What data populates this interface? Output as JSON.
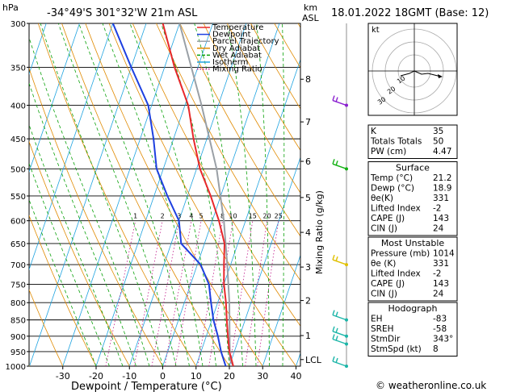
{
  "header": {
    "location": "-34°49'S  301°32'W  21m  ASL",
    "datetime": "18.01.2022  18GMT  (Base: 12)",
    "hpa_label": "hPa",
    "km_label": "km",
    "asl_label": "ASL"
  },
  "footer": {
    "copyright": "© weatheronline.co.uk"
  },
  "chart_data": {
    "type": "line",
    "subtype": "skew-T log-P sounding",
    "xlabel": "Dewpoint / Temperature (°C)",
    "ylabel_right": "Mixing Ratio (g/kg)",
    "x_ticks": [
      -30,
      -20,
      -10,
      0,
      10,
      20,
      30,
      40
    ],
    "pressure_ticks": [
      300,
      350,
      400,
      450,
      500,
      550,
      600,
      650,
      700,
      750,
      800,
      850,
      900,
      950,
      1000
    ],
    "km_ticks": [
      {
        "label": "8",
        "p": 365
      },
      {
        "label": "7",
        "p": 424
      },
      {
        "label": "6",
        "p": 487
      },
      {
        "label": "5",
        "p": 553
      },
      {
        "label": "4",
        "p": 625
      },
      {
        "label": "3",
        "p": 706
      },
      {
        "label": "2",
        "p": 794
      },
      {
        "label": "1",
        "p": 898
      },
      {
        "label": "LCL",
        "p": 977
      }
    ],
    "mixing_ratio_labels": [
      "1",
      "2",
      "3",
      "4",
      "5",
      "8",
      "10",
      "15",
      "20",
      "25"
    ],
    "legend": [
      {
        "name": "Temperature",
        "color": "#e8282b"
      },
      {
        "name": "Dewpoint",
        "color": "#1d3fe0"
      },
      {
        "name": "Parcel Trajectory",
        "color": "#9aa0a6"
      },
      {
        "name": "Dry Adiabat",
        "color": "#e08a00"
      },
      {
        "name": "Wet Adiabat",
        "color": "#0aa10a"
      },
      {
        "name": "Isotherm",
        "color": "#1fa3e0"
      },
      {
        "name": "Mixing Ratio",
        "color": "#c0188a"
      }
    ],
    "temperature": [
      [
        1000,
        21.2
      ],
      [
        950,
        18.5
      ],
      [
        900,
        16.5
      ],
      [
        850,
        14.5
      ],
      [
        800,
        12.5
      ],
      [
        750,
        10
      ],
      [
        700,
        8
      ],
      [
        650,
        6
      ],
      [
        600,
        2
      ],
      [
        550,
        -3
      ],
      [
        500,
        -9
      ],
      [
        450,
        -14
      ],
      [
        400,
        -19
      ],
      [
        350,
        -27
      ],
      [
        300,
        -35
      ]
    ],
    "dewpoint": [
      [
        1000,
        18.9
      ],
      [
        950,
        16
      ],
      [
        900,
        13.5
      ],
      [
        850,
        10.5
      ],
      [
        800,
        8
      ],
      [
        750,
        5.5
      ],
      [
        700,
        1
      ],
      [
        650,
        -7
      ],
      [
        600,
        -10
      ],
      [
        550,
        -16
      ],
      [
        500,
        -22
      ],
      [
        450,
        -26
      ],
      [
        400,
        -31
      ],
      [
        350,
        -40
      ],
      [
        300,
        -50
      ]
    ],
    "parcel": [
      [
        1000,
        21.2
      ],
      [
        977,
        19.5
      ],
      [
        900,
        17
      ],
      [
        800,
        13.5
      ],
      [
        700,
        9
      ],
      [
        600,
        3.5
      ],
      [
        500,
        -4
      ],
      [
        400,
        -15
      ],
      [
        300,
        -30
      ]
    ],
    "wind_barbs": [
      {
        "p": 400,
        "color": "#8a1fd0"
      },
      {
        "p": 500,
        "color": "#12b012"
      },
      {
        "p": 700,
        "color": "#e0c000"
      },
      {
        "p": 850,
        "color": "#1bb5a8"
      },
      {
        "p": 900,
        "color": "#1bb5a8"
      },
      {
        "p": 925,
        "color": "#1bb5a8"
      },
      {
        "p": 1000,
        "color": "#1bb5a8"
      }
    ]
  },
  "indices": {
    "rows": [
      {
        "label": "K",
        "value": "35"
      },
      {
        "label": "Totals Totals",
        "value": "50"
      },
      {
        "label": "PW (cm)",
        "value": "4.47"
      }
    ]
  },
  "surface": {
    "title": "Surface",
    "rows": [
      {
        "label": "Temp (°C)",
        "value": "21.2"
      },
      {
        "label": "Dewp (°C)",
        "value": "18.9"
      },
      {
        "label": "θe(K)",
        "value": "331"
      },
      {
        "label": "Lifted Index",
        "value": "-2"
      },
      {
        "label": "CAPE (J)",
        "value": "143"
      },
      {
        "label": "CIN (J)",
        "value": "24"
      }
    ]
  },
  "unstable": {
    "title": "Most Unstable",
    "rows": [
      {
        "label": "Pressure (mb)",
        "value": "1014"
      },
      {
        "label": "θe (K)",
        "value": "331"
      },
      {
        "label": "Lifted Index",
        "value": "-2"
      },
      {
        "label": "CAPE (J)",
        "value": "143"
      },
      {
        "label": "CIN (J)",
        "value": "24"
      }
    ]
  },
  "hodograph_table": {
    "title": "Hodograph",
    "rows": [
      {
        "label": "EH",
        "value": "-83"
      },
      {
        "label": "SREH",
        "value": "-58"
      },
      {
        "label": "StmDir",
        "value": "343°"
      },
      {
        "label": "StmSpd (kt)",
        "value": "8"
      }
    ]
  },
  "hodograph": {
    "unit_label": "kt",
    "ring_labels": [
      "10",
      "20",
      "30"
    ]
  }
}
